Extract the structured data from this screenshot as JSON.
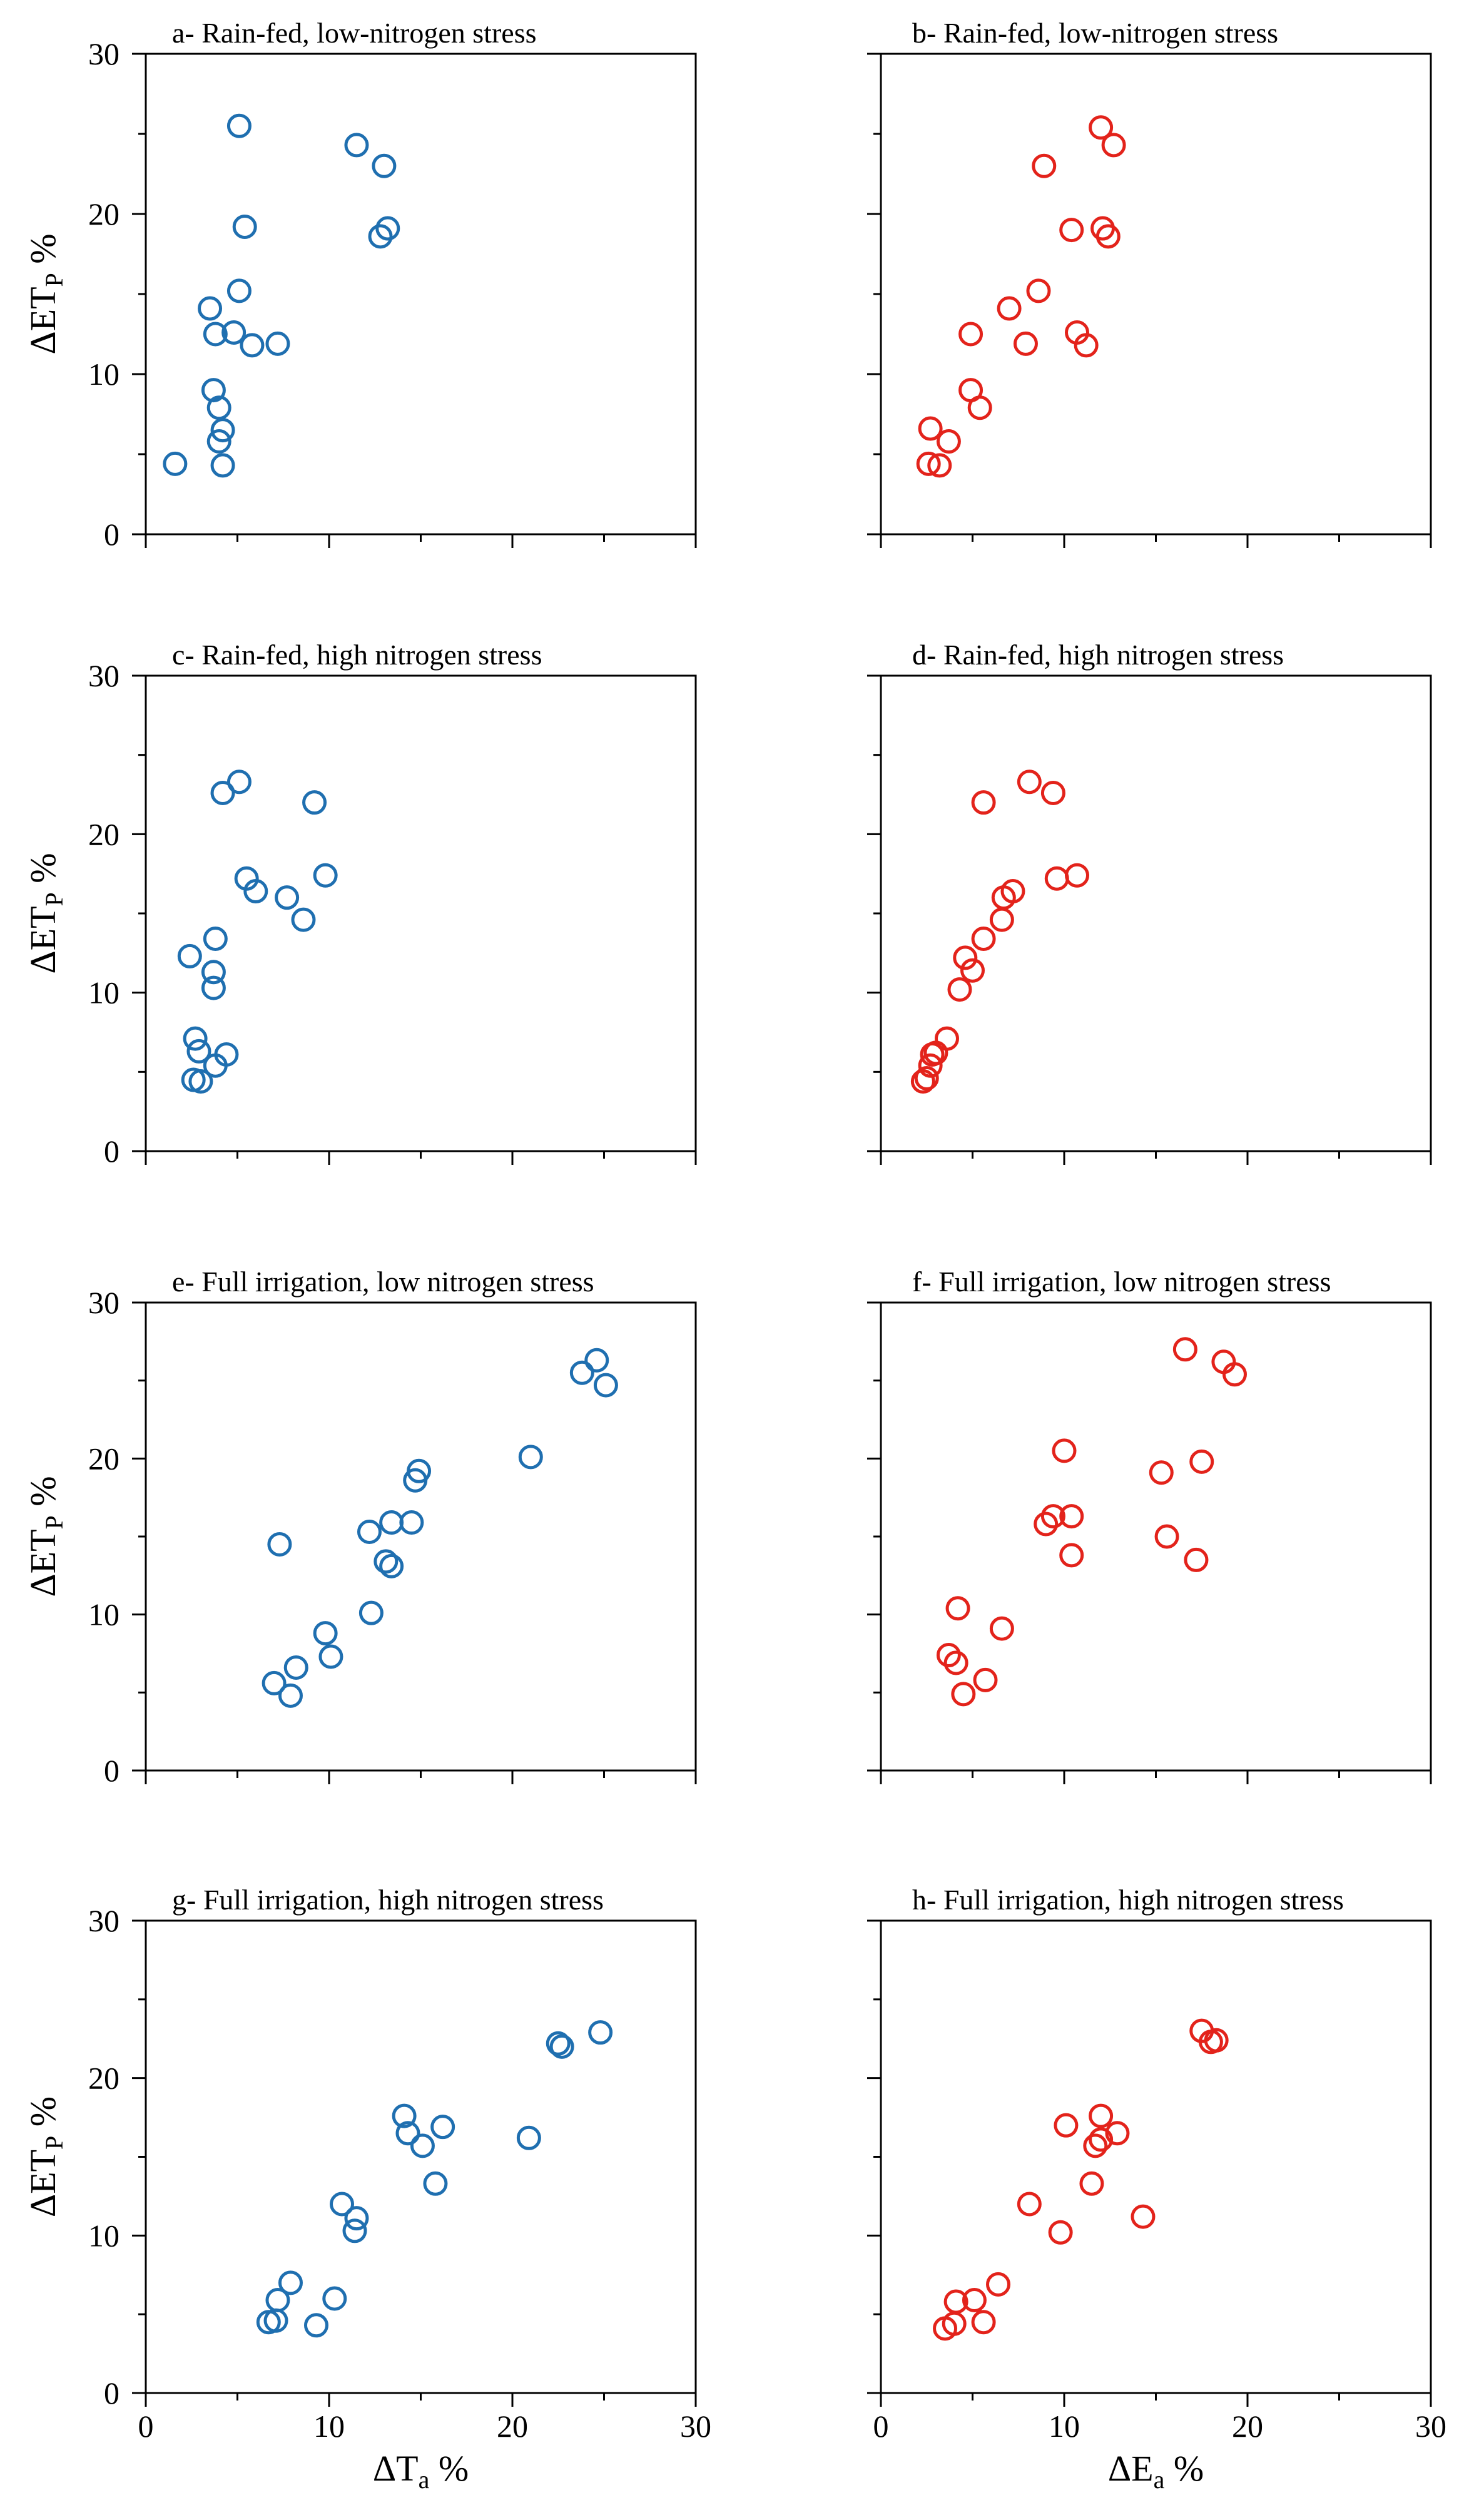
{
  "colors": {
    "blue": "#1f6fb0",
    "red": "#e3231b"
  },
  "chart_data": [
    {
      "type": "scatter",
      "panel": "a",
      "title": "a- Rain-fed, low-nitrogen stress",
      "xlabel": "",
      "ylabel": "ΔET",
      "ylabel_sub": "P",
      "ylabel_unit": " %",
      "xlim": [
        0,
        30
      ],
      "ylim": [
        0,
        30
      ],
      "xticks": [],
      "yticks": [
        "0",
        "10",
        "20",
        "30"
      ],
      "color": "blue",
      "points": [
        [
          1.6,
          4.4
        ],
        [
          3.5,
          14.1
        ],
        [
          3.8,
          12.5
        ],
        [
          3.7,
          9.0
        ],
        [
          4.0,
          7.9
        ],
        [
          4.2,
          6.5
        ],
        [
          4.0,
          5.8
        ],
        [
          4.2,
          4.3
        ],
        [
          4.8,
          12.6
        ],
        [
          5.1,
          15.2
        ],
        [
          5.1,
          25.5
        ],
        [
          5.4,
          19.2
        ],
        [
          5.8,
          11.8
        ],
        [
          7.2,
          11.9
        ],
        [
          11.5,
          24.3
        ],
        [
          12.8,
          18.6
        ],
        [
          13.0,
          23.0
        ],
        [
          13.2,
          19.1
        ]
      ]
    },
    {
      "type": "scatter",
      "panel": "b",
      "title": "b- Rain-fed, low-nitrogen stress",
      "xlabel": "",
      "ylabel": "",
      "xlim": [
        0,
        30
      ],
      "ylim": [
        0,
        30
      ],
      "xticks": [],
      "yticks": [],
      "color": "red",
      "points": [
        [
          2.6,
          4.4
        ],
        [
          2.7,
          6.6
        ],
        [
          3.2,
          4.3
        ],
        [
          3.7,
          5.8
        ],
        [
          4.9,
          12.5
        ],
        [
          4.9,
          9.0
        ],
        [
          5.4,
          7.9
        ],
        [
          7.0,
          14.1
        ],
        [
          7.9,
          11.9
        ],
        [
          8.6,
          15.2
        ],
        [
          8.9,
          23.0
        ],
        [
          10.4,
          19.0
        ],
        [
          10.7,
          12.6
        ],
        [
          11.2,
          11.8
        ],
        [
          12.0,
          25.4
        ],
        [
          12.1,
          19.1
        ],
        [
          12.4,
          18.6
        ],
        [
          12.7,
          24.3
        ]
      ]
    },
    {
      "type": "scatter",
      "panel": "c",
      "title": "c- Rain-fed, high nitrogen stress",
      "xlabel": "",
      "ylabel": "ΔET",
      "ylabel_sub": "P",
      "ylabel_unit": " %",
      "xlim": [
        0,
        30
      ],
      "ylim": [
        0,
        30
      ],
      "xticks": [],
      "yticks": [
        "0",
        "10",
        "20",
        "30"
      ],
      "color": "blue",
      "points": [
        [
          2.4,
          12.3
        ],
        [
          2.6,
          4.5
        ],
        [
          2.7,
          7.1
        ],
        [
          2.9,
          6.3
        ],
        [
          3.0,
          4.4
        ],
        [
          3.7,
          11.3
        ],
        [
          3.7,
          10.3
        ],
        [
          3.8,
          13.4
        ],
        [
          3.8,
          5.4
        ],
        [
          4.2,
          22.6
        ],
        [
          4.4,
          6.1
        ],
        [
          5.1,
          23.3
        ],
        [
          5.5,
          17.2
        ],
        [
          6.0,
          16.4
        ],
        [
          7.7,
          16.0
        ],
        [
          8.6,
          14.6
        ],
        [
          9.2,
          22.0
        ],
        [
          9.8,
          17.4
        ]
      ]
    },
    {
      "type": "scatter",
      "panel": "d",
      "title": "d- Rain-fed, high nitrogen stress",
      "xlabel": "",
      "ylabel": "",
      "xlim": [
        0,
        30
      ],
      "ylim": [
        0,
        30
      ],
      "xticks": [],
      "yticks": [],
      "color": "red",
      "points": [
        [
          2.3,
          4.4
        ],
        [
          2.5,
          4.6
        ],
        [
          2.7,
          5.4
        ],
        [
          2.8,
          6.1
        ],
        [
          3.0,
          6.2
        ],
        [
          3.6,
          7.1
        ],
        [
          4.3,
          10.2
        ],
        [
          4.6,
          12.2
        ],
        [
          5.0,
          11.4
        ],
        [
          5.6,
          13.4
        ],
        [
          5.6,
          22.0
        ],
        [
          6.6,
          14.6
        ],
        [
          6.7,
          16.0
        ],
        [
          7.2,
          16.4
        ],
        [
          8.1,
          23.3
        ],
        [
          9.4,
          22.6
        ],
        [
          9.6,
          17.2
        ],
        [
          10.7,
          17.4
        ]
      ]
    },
    {
      "type": "scatter",
      "panel": "e",
      "title": "e- Full irrigation, low nitrogen stress",
      "xlabel": "",
      "ylabel": "ΔET",
      "ylabel_sub": "P",
      "ylabel_unit": " %",
      "xlim": [
        0,
        30
      ],
      "ylim": [
        0,
        30
      ],
      "xticks": [],
      "yticks": [
        "0",
        "10",
        "20",
        "30"
      ],
      "color": "blue",
      "points": [
        [
          7.0,
          5.6
        ],
        [
          7.3,
          14.5
        ],
        [
          7.9,
          4.8
        ],
        [
          8.2,
          6.6
        ],
        [
          9.8,
          8.8
        ],
        [
          10.1,
          7.3
        ],
        [
          12.2,
          15.3
        ],
        [
          12.3,
          10.1
        ],
        [
          13.1,
          13.4
        ],
        [
          13.4,
          13.1
        ],
        [
          13.4,
          15.9
        ],
        [
          14.5,
          15.9
        ],
        [
          14.7,
          18.6
        ],
        [
          14.9,
          19.2
        ],
        [
          21.0,
          20.1
        ],
        [
          23.8,
          25.5
        ],
        [
          24.6,
          26.3
        ],
        [
          25.1,
          24.7
        ]
      ]
    },
    {
      "type": "scatter",
      "panel": "f",
      "title": "f- Full irrigation, low nitrogen stress",
      "xlabel": "",
      "ylabel": "",
      "xlim": [
        0,
        30
      ],
      "ylim": [
        0,
        30
      ],
      "xticks": [],
      "yticks": [],
      "color": "red",
      "points": [
        [
          3.7,
          7.4
        ],
        [
          4.1,
          6.9
        ],
        [
          4.2,
          10.4
        ],
        [
          4.5,
          4.9
        ],
        [
          5.7,
          5.8
        ],
        [
          6.6,
          9.1
        ],
        [
          9.0,
          15.8
        ],
        [
          9.4,
          16.3
        ],
        [
          10.0,
          20.5
        ],
        [
          10.4,
          16.3
        ],
        [
          10.4,
          13.8
        ],
        [
          15.3,
          19.1
        ],
        [
          15.6,
          15.0
        ],
        [
          16.6,
          27.0
        ],
        [
          17.2,
          13.5
        ],
        [
          17.5,
          19.8
        ],
        [
          18.7,
          26.2
        ],
        [
          19.3,
          25.4
        ]
      ]
    },
    {
      "type": "scatter",
      "panel": "g",
      "title": "g- Full irrigation, high nitrogen stress",
      "xlabel": "ΔT",
      "xlabel_sub": "a",
      "xlabel_unit": " %",
      "ylabel": "ΔET",
      "ylabel_sub": "P",
      "ylabel_unit": " %",
      "xlim": [
        0,
        30
      ],
      "ylim": [
        0,
        30
      ],
      "xticks": [
        "0",
        "10",
        "20",
        "30"
      ],
      "yticks": [
        "0",
        "10",
        "20",
        "30"
      ],
      "color": "blue",
      "points": [
        [
          6.7,
          4.5
        ],
        [
          7.1,
          4.6
        ],
        [
          7.2,
          5.9
        ],
        [
          7.9,
          7.0
        ],
        [
          9.3,
          4.3
        ],
        [
          10.3,
          6.0
        ],
        [
          10.7,
          12.0
        ],
        [
          11.4,
          10.3
        ],
        [
          11.5,
          11.1
        ],
        [
          14.1,
          17.6
        ],
        [
          14.3,
          16.5
        ],
        [
          15.1,
          15.7
        ],
        [
          15.8,
          13.3
        ],
        [
          16.2,
          16.9
        ],
        [
          20.9,
          16.2
        ],
        [
          22.5,
          22.2
        ],
        [
          22.7,
          22.0
        ],
        [
          24.8,
          22.9
        ]
      ]
    },
    {
      "type": "scatter",
      "panel": "h",
      "title": "h- Full irrigation, high nitrogen stress",
      "xlabel": "ΔE",
      "xlabel_sub": "a",
      "xlabel_unit": " %",
      "ylabel": "",
      "xlim": [
        0,
        30
      ],
      "ylim": [
        0,
        30
      ],
      "xticks": [
        "0",
        "10",
        "20",
        "30"
      ],
      "yticks": [],
      "color": "red",
      "points": [
        [
          3.5,
          4.1
        ],
        [
          4.0,
          4.4
        ],
        [
          4.1,
          5.8
        ],
        [
          5.1,
          5.9
        ],
        [
          5.6,
          4.5
        ],
        [
          6.4,
          6.9
        ],
        [
          8.1,
          12.0
        ],
        [
          9.8,
          10.2
        ],
        [
          10.1,
          17.0
        ],
        [
          11.5,
          13.3
        ],
        [
          11.7,
          15.7
        ],
        [
          12.0,
          16.1
        ],
        [
          12.0,
          17.6
        ],
        [
          12.9,
          16.5
        ],
        [
          14.3,
          11.2
        ],
        [
          17.5,
          23.0
        ],
        [
          18.0,
          22.3
        ],
        [
          18.3,
          22.4
        ]
      ]
    }
  ]
}
